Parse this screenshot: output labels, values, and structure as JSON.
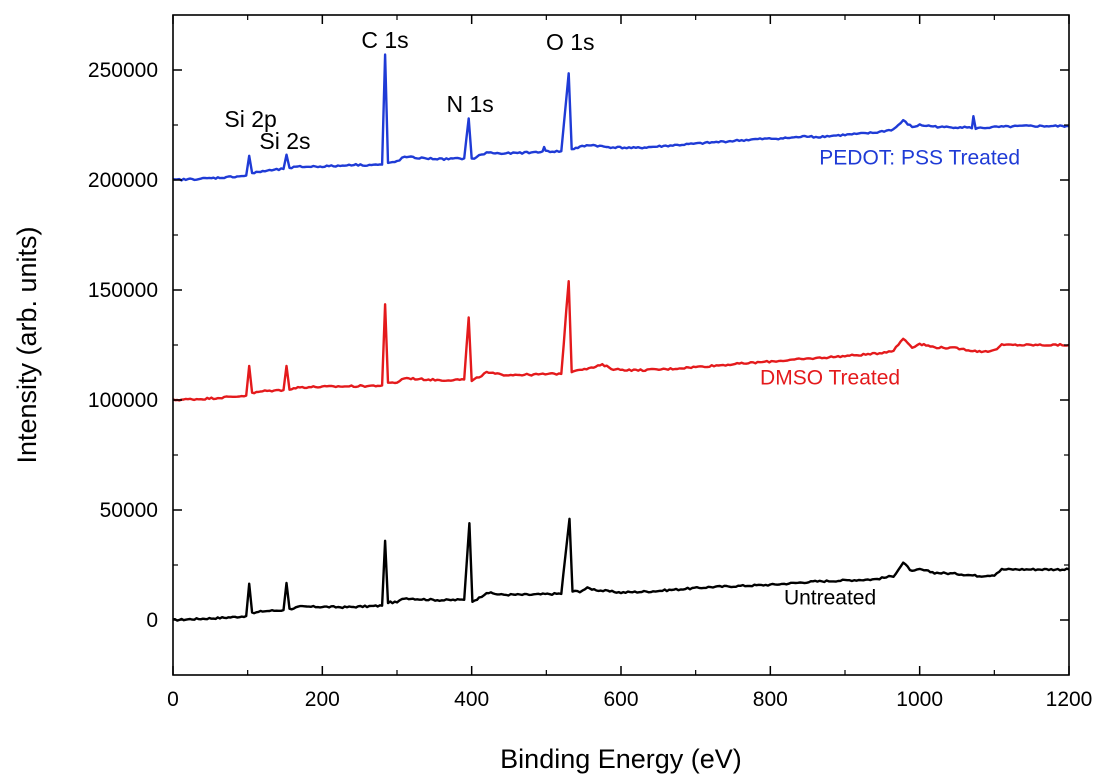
{
  "chart_data": {
    "type": "line",
    "xlabel": "Binding Energy (eV)",
    "ylabel": "Intensity (arb. units)",
    "xlim": [
      0,
      1200
    ],
    "ylim": [
      -25000,
      275000
    ],
    "x_ticks": [
      0,
      200,
      400,
      600,
      800,
      1000,
      1200
    ],
    "x_tick_labels": [
      "0",
      "200",
      "400",
      "600",
      "800",
      "1000",
      "1200"
    ],
    "y_ticks": [
      0,
      50000,
      100000,
      150000,
      200000,
      250000
    ],
    "y_tick_labels": [
      "0",
      "50000",
      "100000",
      "150000",
      "200000",
      "250000"
    ],
    "grid": false,
    "annotations": [
      {
        "text": "Si 2p",
        "x": 104,
        "y": 224000
      },
      {
        "text": "Si 2s",
        "x": 150,
        "y": 214000
      },
      {
        "text": "C 1s",
        "x": 284,
        "y": 260000
      },
      {
        "text": "N 1s",
        "x": 398,
        "y": 231000
      },
      {
        "text": "O 1s",
        "x": 532,
        "y": 259000
      }
    ],
    "series": [
      {
        "name": "Untreated",
        "color": "#000000",
        "label_pos": [
          880,
          7000
        ],
        "points": [
          [
            0,
            0
          ],
          [
            20,
            300
          ],
          [
            40,
            600
          ],
          [
            60,
            900
          ],
          [
            80,
            1300
          ],
          [
            98,
            1800
          ],
          [
            102,
            16500
          ],
          [
            106,
            3000
          ],
          [
            120,
            4000
          ],
          [
            148,
            4500
          ],
          [
            152,
            16800
          ],
          [
            156,
            5000
          ],
          [
            170,
            6000
          ],
          [
            200,
            6000
          ],
          [
            230,
            5800
          ],
          [
            260,
            6200
          ],
          [
            280,
            6500
          ],
          [
            284,
            36000
          ],
          [
            288,
            8000
          ],
          [
            300,
            8000
          ],
          [
            310,
            10000
          ],
          [
            330,
            9500
          ],
          [
            360,
            9000
          ],
          [
            390,
            9200
          ],
          [
            397,
            44000
          ],
          [
            401,
            8500
          ],
          [
            410,
            10000
          ],
          [
            420,
            12500
          ],
          [
            440,
            11500
          ],
          [
            480,
            11500
          ],
          [
            520,
            12000
          ],
          [
            531,
            46000
          ],
          [
            535,
            13000
          ],
          [
            545,
            13000
          ],
          [
            555,
            14500
          ],
          [
            570,
            13500
          ],
          [
            600,
            12500
          ],
          [
            640,
            13000
          ],
          [
            680,
            14000
          ],
          [
            720,
            15000
          ],
          [
            760,
            15500
          ],
          [
            800,
            16000
          ],
          [
            840,
            17000
          ],
          [
            860,
            17500
          ],
          [
            900,
            18000
          ],
          [
            940,
            18500
          ],
          [
            965,
            20000
          ],
          [
            978,
            26000
          ],
          [
            990,
            22000
          ],
          [
            1000,
            23000
          ],
          [
            1020,
            21500
          ],
          [
            1050,
            21000
          ],
          [
            1080,
            20000
          ],
          [
            1100,
            20500
          ],
          [
            1110,
            23000
          ],
          [
            1140,
            23000
          ],
          [
            1170,
            23000
          ],
          [
            1200,
            23000
          ]
        ]
      },
      {
        "name": "DMSO Treated",
        "color": "#e41a1c",
        "label_pos": [
          880,
          107000
        ],
        "points": [
          [
            0,
            100000
          ],
          [
            20,
            100300
          ],
          [
            40,
            100500
          ],
          [
            60,
            101000
          ],
          [
            80,
            101500
          ],
          [
            98,
            102000
          ],
          [
            102,
            115500
          ],
          [
            106,
            103000
          ],
          [
            120,
            104000
          ],
          [
            148,
            104500
          ],
          [
            152,
            115500
          ],
          [
            156,
            105000
          ],
          [
            170,
            105800
          ],
          [
            200,
            106000
          ],
          [
            230,
            106200
          ],
          [
            260,
            106400
          ],
          [
            280,
            106600
          ],
          [
            284,
            143500
          ],
          [
            288,
            107500
          ],
          [
            300,
            108000
          ],
          [
            310,
            110000
          ],
          [
            330,
            109500
          ],
          [
            360,
            109000
          ],
          [
            390,
            109300
          ],
          [
            396,
            137500
          ],
          [
            400,
            108500
          ],
          [
            410,
            110500
          ],
          [
            420,
            112500
          ],
          [
            440,
            111500
          ],
          [
            480,
            111500
          ],
          [
            520,
            112000
          ],
          [
            530,
            154000
          ],
          [
            534,
            113000
          ],
          [
            545,
            114000
          ],
          [
            560,
            114500
          ],
          [
            575,
            116000
          ],
          [
            590,
            114000
          ],
          [
            620,
            113500
          ],
          [
            660,
            114000
          ],
          [
            700,
            115000
          ],
          [
            740,
            116000
          ],
          [
            780,
            117000
          ],
          [
            820,
            118000
          ],
          [
            860,
            119000
          ],
          [
            900,
            120000
          ],
          [
            940,
            121000
          ],
          [
            965,
            122500
          ],
          [
            978,
            128000
          ],
          [
            990,
            124000
          ],
          [
            1000,
            125500
          ],
          [
            1020,
            124000
          ],
          [
            1050,
            123500
          ],
          [
            1080,
            122000
          ],
          [
            1100,
            122500
          ],
          [
            1110,
            125000
          ],
          [
            1140,
            125000
          ],
          [
            1170,
            125000
          ],
          [
            1200,
            125000
          ]
        ]
      },
      {
        "name": "PEDOT: PSS Treated",
        "color": "#1f3bd6",
        "label_pos": [
          1000,
          207000
        ],
        "points": [
          [
            0,
            200000
          ],
          [
            20,
            200300
          ],
          [
            40,
            200600
          ],
          [
            60,
            201000
          ],
          [
            80,
            201500
          ],
          [
            98,
            202000
          ],
          [
            102,
            211000
          ],
          [
            106,
            203000
          ],
          [
            120,
            204000
          ],
          [
            148,
            205000
          ],
          [
            152,
            211500
          ],
          [
            156,
            205500
          ],
          [
            170,
            206000
          ],
          [
            200,
            206200
          ],
          [
            230,
            206500
          ],
          [
            233,
            207000
          ],
          [
            260,
            206800
          ],
          [
            280,
            207000
          ],
          [
            284,
            257000
          ],
          [
            288,
            207500
          ],
          [
            300,
            208500
          ],
          [
            310,
            210500
          ],
          [
            330,
            210000
          ],
          [
            360,
            209500
          ],
          [
            390,
            209800
          ],
          [
            396,
            228000
          ],
          [
            400,
            209500
          ],
          [
            410,
            211000
          ],
          [
            420,
            212500
          ],
          [
            440,
            212000
          ],
          [
            480,
            212500
          ],
          [
            495,
            213000
          ],
          [
            497,
            215000
          ],
          [
            499,
            213000
          ],
          [
            520,
            213000
          ],
          [
            530,
            248500
          ],
          [
            534,
            214000
          ],
          [
            545,
            215000
          ],
          [
            560,
            216000
          ],
          [
            580,
            215000
          ],
          [
            620,
            214500
          ],
          [
            640,
            215000
          ],
          [
            660,
            215500
          ],
          [
            700,
            216500
          ],
          [
            740,
            217500
          ],
          [
            780,
            218500
          ],
          [
            820,
            219000
          ],
          [
            855,
            220000
          ],
          [
            858,
            219500
          ],
          [
            900,
            220500
          ],
          [
            940,
            221500
          ],
          [
            965,
            223000
          ],
          [
            978,
            227000
          ],
          [
            990,
            224000
          ],
          [
            1000,
            225000
          ],
          [
            1030,
            224000
          ],
          [
            1060,
            224000
          ],
          [
            1070,
            223500
          ],
          [
            1072,
            229000
          ],
          [
            1075,
            223500
          ],
          [
            1100,
            224000
          ],
          [
            1140,
            224500
          ],
          [
            1170,
            224500
          ],
          [
            1200,
            224500
          ]
        ]
      }
    ]
  }
}
